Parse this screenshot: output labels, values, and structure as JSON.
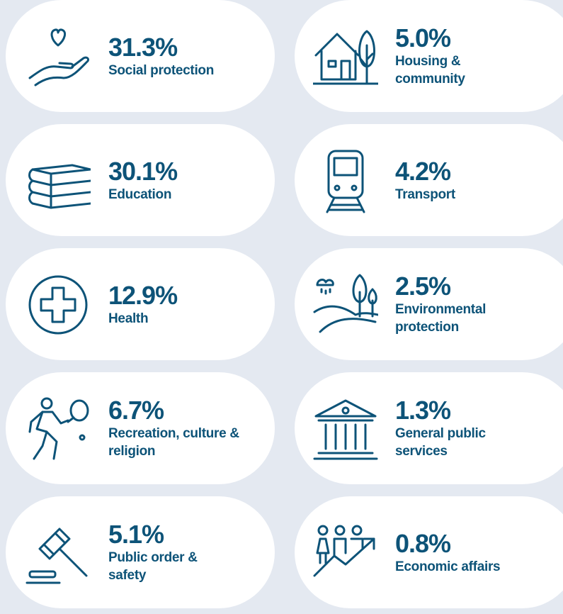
{
  "items": [
    {
      "value": "31.3%",
      "label": "Social protection"
    },
    {
      "value": "5.0%",
      "label": "Housing & community"
    },
    {
      "value": "30.1%",
      "label": "Education"
    },
    {
      "value": "4.2%",
      "label": "Transport"
    },
    {
      "value": "12.9%",
      "label": "Health"
    },
    {
      "value": "2.5%",
      "label": "Environmental protection"
    },
    {
      "value": "6.7%",
      "label": "Recreation, culture & religion"
    },
    {
      "value": "1.3%",
      "label": "General public services"
    },
    {
      "value": "5.1%",
      "label": "Public order & safety"
    },
    {
      "value": "0.8%",
      "label": "Economic affairs"
    }
  ]
}
